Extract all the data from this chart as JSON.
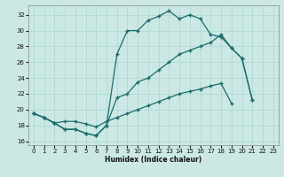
{
  "bg_color": "#cce8e4",
  "line_color": "#1a6b6b",
  "xlabel": "Humidex (Indice chaleur)",
  "xlim": [
    -0.5,
    23.5
  ],
  "ylim": [
    15.5,
    33.2
  ],
  "xticks": [
    0,
    1,
    2,
    3,
    4,
    5,
    6,
    7,
    8,
    9,
    10,
    11,
    12,
    13,
    14,
    15,
    16,
    17,
    18,
    19,
    20,
    21,
    22,
    23
  ],
  "yticks": [
    16,
    18,
    20,
    22,
    24,
    26,
    28,
    30,
    32
  ],
  "grid_color": "#aad8d0",
  "line1": [
    [
      0,
      19.5
    ],
    [
      1,
      19.0
    ],
    [
      2,
      18.3
    ],
    [
      3,
      17.5
    ],
    [
      4,
      17.5
    ],
    [
      5,
      17.0
    ],
    [
      6,
      16.7
    ],
    [
      7,
      18.0
    ],
    [
      8,
      27.0
    ],
    [
      9,
      30.0
    ],
    [
      10,
      30.0
    ],
    [
      11,
      31.3
    ],
    [
      12,
      31.8
    ],
    [
      13,
      32.5
    ],
    [
      14,
      31.5
    ],
    [
      15,
      32.0
    ],
    [
      16,
      31.5
    ],
    [
      17,
      29.5
    ],
    [
      18,
      29.2
    ],
    [
      19,
      27.8
    ],
    [
      20,
      26.5
    ],
    [
      21,
      21.2
    ]
  ],
  "line2": [
    [
      0,
      19.5
    ],
    [
      1,
      19.0
    ],
    [
      2,
      18.3
    ],
    [
      3,
      17.5
    ],
    [
      4,
      17.5
    ],
    [
      5,
      17.0
    ],
    [
      6,
      16.7
    ],
    [
      7,
      18.0
    ],
    [
      8,
      21.5
    ],
    [
      9,
      22.0
    ],
    [
      10,
      23.5
    ],
    [
      11,
      24.0
    ],
    [
      12,
      25.0
    ],
    [
      13,
      26.0
    ],
    [
      14,
      27.0
    ],
    [
      15,
      27.5
    ],
    [
      16,
      28.0
    ],
    [
      17,
      28.5
    ],
    [
      18,
      29.5
    ],
    [
      19,
      27.8
    ],
    [
      20,
      26.5
    ],
    [
      21,
      21.2
    ]
  ],
  "line3": [
    [
      0,
      19.5
    ],
    [
      1,
      19.0
    ],
    [
      2,
      18.3
    ],
    [
      3,
      18.5
    ],
    [
      4,
      18.5
    ],
    [
      5,
      18.2
    ],
    [
      6,
      17.8
    ],
    [
      7,
      18.5
    ],
    [
      8,
      19.0
    ],
    [
      9,
      19.5
    ],
    [
      10,
      20.0
    ],
    [
      11,
      20.5
    ],
    [
      12,
      21.0
    ],
    [
      13,
      21.5
    ],
    [
      14,
      22.0
    ],
    [
      15,
      22.3
    ],
    [
      16,
      22.6
    ],
    [
      17,
      23.0
    ],
    [
      18,
      23.3
    ],
    [
      19,
      20.8
    ]
  ]
}
